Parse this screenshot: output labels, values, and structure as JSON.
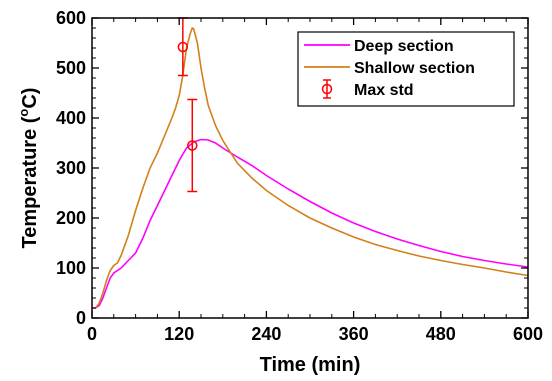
{
  "chart_data": {
    "type": "line",
    "xlabel": "Time (min)",
    "ylabel": "Temperature (°C)",
    "ylabel_parts": {
      "main": "Temperature (",
      "sup": "o",
      "unit": "C)"
    },
    "xlim": [
      0,
      600
    ],
    "ylim": [
      0,
      600
    ],
    "xticks": [
      0,
      120,
      240,
      360,
      480,
      600
    ],
    "yticks": [
      0,
      100,
      200,
      300,
      400,
      500,
      600
    ],
    "grid": false,
    "legend_position": "top-right",
    "series": [
      {
        "name": "Deep section",
        "color": "#ff00ff",
        "points": [
          [
            0,
            20
          ],
          [
            5,
            20
          ],
          [
            10,
            25
          ],
          [
            15,
            40
          ],
          [
            20,
            60
          ],
          [
            25,
            80
          ],
          [
            30,
            90
          ],
          [
            40,
            100
          ],
          [
            50,
            115
          ],
          [
            60,
            130
          ],
          [
            70,
            160
          ],
          [
            80,
            195
          ],
          [
            90,
            225
          ],
          [
            100,
            255
          ],
          [
            110,
            285
          ],
          [
            120,
            315
          ],
          [
            130,
            340
          ],
          [
            140,
            352
          ],
          [
            150,
            357
          ],
          [
            160,
            356
          ],
          [
            170,
            350
          ],
          [
            180,
            340
          ],
          [
            200,
            322
          ],
          [
            220,
            305
          ],
          [
            240,
            285
          ],
          [
            270,
            258
          ],
          [
            300,
            233
          ],
          [
            330,
            210
          ],
          [
            360,
            190
          ],
          [
            390,
            173
          ],
          [
            420,
            158
          ],
          [
            450,
            145
          ],
          [
            480,
            133
          ],
          [
            510,
            123
          ],
          [
            540,
            115
          ],
          [
            570,
            108
          ],
          [
            600,
            102
          ]
        ]
      },
      {
        "name": "Shallow section",
        "color": "#d2801a",
        "points": [
          [
            0,
            20
          ],
          [
            5,
            20
          ],
          [
            10,
            30
          ],
          [
            15,
            50
          ],
          [
            20,
            75
          ],
          [
            25,
            95
          ],
          [
            30,
            105
          ],
          [
            35,
            110
          ],
          [
            40,
            125
          ],
          [
            50,
            165
          ],
          [
            60,
            215
          ],
          [
            70,
            260
          ],
          [
            80,
            300
          ],
          [
            90,
            330
          ],
          [
            100,
            365
          ],
          [
            110,
            400
          ],
          [
            115,
            420
          ],
          [
            120,
            445
          ],
          [
            125,
            485
          ],
          [
            130,
            540
          ],
          [
            135,
            568
          ],
          [
            138,
            580
          ],
          [
            140,
            578
          ],
          [
            145,
            550
          ],
          [
            150,
            500
          ],
          [
            155,
            460
          ],
          [
            160,
            425
          ],
          [
            170,
            385
          ],
          [
            180,
            355
          ],
          [
            200,
            310
          ],
          [
            220,
            280
          ],
          [
            240,
            255
          ],
          [
            270,
            225
          ],
          [
            300,
            200
          ],
          [
            330,
            180
          ],
          [
            360,
            162
          ],
          [
            390,
            147
          ],
          [
            420,
            135
          ],
          [
            450,
            124
          ],
          [
            480,
            115
          ],
          [
            510,
            107
          ],
          [
            540,
            100
          ],
          [
            570,
            92
          ],
          [
            600,
            85
          ]
        ]
      }
    ],
    "error_markers": {
      "name": "Max std",
      "color": "#ff0000",
      "points": [
        {
          "x": 125,
          "y": 542,
          "low": 485,
          "high": 600
        },
        {
          "x": 138,
          "y": 345,
          "low": 253,
          "high": 437
        }
      ]
    }
  }
}
